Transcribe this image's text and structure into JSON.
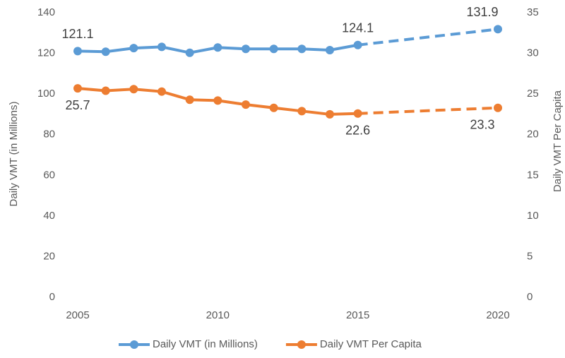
{
  "chart_data": {
    "type": "line",
    "x": [
      2005,
      2006,
      2007,
      2008,
      2009,
      2010,
      2011,
      2012,
      2013,
      2014,
      2015,
      2020
    ],
    "xlim": [
      2005,
      2020
    ],
    "xticks": [
      2005,
      2010,
      2015,
      2020
    ],
    "ylim": [
      0,
      140
    ],
    "yticks": [
      0,
      20,
      40,
      60,
      80,
      100,
      120,
      140
    ],
    "y2lim": [
      0,
      35
    ],
    "y2ticks": [
      0,
      5,
      10,
      15,
      20,
      25,
      30,
      35
    ],
    "ylabel": "Daily VMT (in Millions)",
    "y2label": "Daily VMT Per Capita",
    "dashed_from_x": 2015,
    "legend": "bottom",
    "series": [
      {
        "name": "Daily VMT (in Millions)",
        "color": "#5b9bd5",
        "values": [
          121.1,
          120.8,
          122.6,
          123.2,
          120.3,
          122.9,
          122.2,
          122.2,
          122.2,
          121.6,
          124.1,
          131.9
        ],
        "value_labels": [
          "121.1",
          null,
          null,
          null,
          null,
          null,
          null,
          null,
          null,
          null,
          "124.1",
          "131.9"
        ]
      },
      {
        "name": "Daily VMT Per Capita",
        "color": "#ed7d31",
        "axis": "y2",
        "values": [
          25.7,
          25.4,
          25.6,
          25.3,
          24.3,
          24.2,
          23.7,
          23.3,
          22.9,
          22.5,
          22.6,
          23.3
        ],
        "value_labels": [
          "25.7",
          null,
          null,
          null,
          null,
          null,
          null,
          null,
          null,
          null,
          "22.6",
          "23.3"
        ]
      }
    ]
  }
}
